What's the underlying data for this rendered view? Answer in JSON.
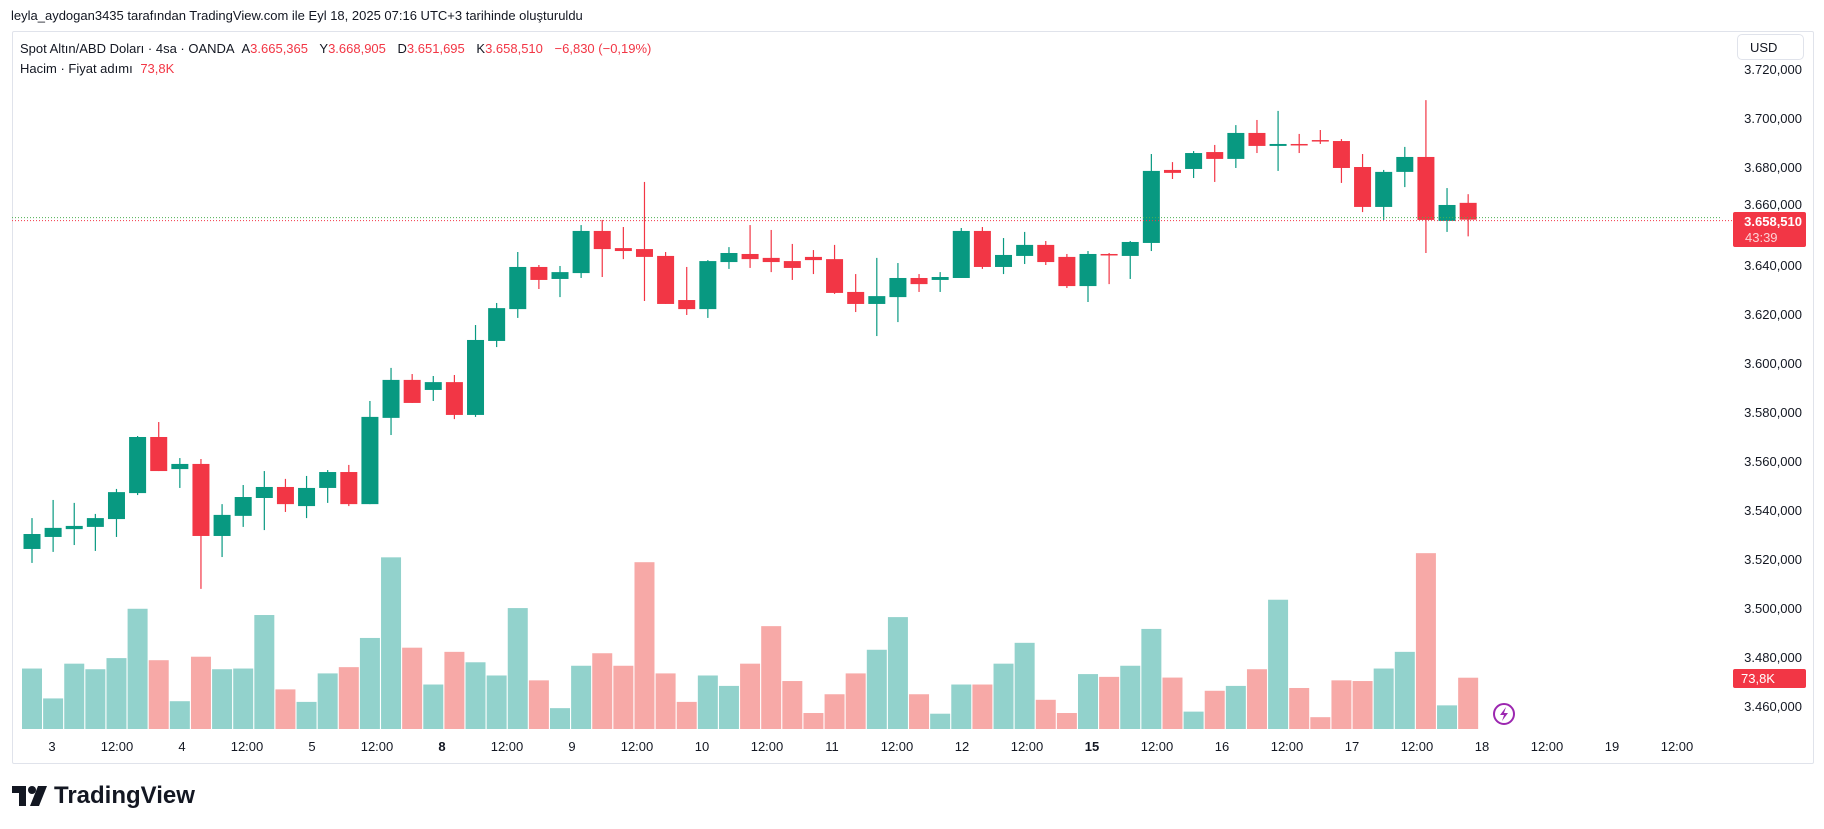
{
  "attribution": "leyla_aydogan3435 tarafından TradingView.com ile Eyl 18, 2025 07:16 UTC+3 tarihinde oluşturuldu",
  "legend": {
    "symbol": "Spot Altın/ABD Doları · 4sa · OANDA",
    "open_label": "A",
    "open": "3.665,365",
    "high_label": "Y",
    "high": "3.668,905",
    "low_label": "D",
    "low": "3.651,695",
    "close_label": "K",
    "close": "3.658,510",
    "change": "−6,830 (−0,19%)",
    "volume_title": "Hacim · Fiyat adımı",
    "volume_value": "73,8K"
  },
  "currency_button": "USD",
  "price_badge": {
    "price": "3.658,510",
    "countdown": "43:39"
  },
  "volume_badge": "73,8K",
  "logo_text": "TradingView",
  "icons": {
    "alert": "lightning-icon",
    "logo": "tradingview-logo-icon"
  },
  "colors": {
    "up": "#089981",
    "down": "#F23645",
    "vol_up": "#92D2CC",
    "vol_down": "#F7A9A7"
  },
  "chart_data": {
    "type": "candlestick",
    "price_axis_labels": [
      "3.720,000",
      "3.700,000",
      "3.680,000",
      "3.660,000",
      "3.640,000",
      "3.620,000",
      "3.600,000",
      "3.580,000",
      "3.560,000",
      "3.540,000",
      "3.520,000",
      "3.500,000",
      "3.480,000",
      "3.460,000"
    ],
    "price_axis_values": [
      3720,
      3700,
      3680,
      3660,
      3640,
      3620,
      3600,
      3580,
      3560,
      3540,
      3520,
      3500,
      3480,
      3460
    ],
    "time_labels": [
      {
        "t": "3",
        "bold": false
      },
      {
        "t": "12:00",
        "bold": false
      },
      {
        "t": "4",
        "bold": false
      },
      {
        "t": "12:00",
        "bold": false
      },
      {
        "t": "5",
        "bold": false
      },
      {
        "t": "12:00",
        "bold": false
      },
      {
        "t": "8",
        "bold": true
      },
      {
        "t": "12:00",
        "bold": false
      },
      {
        "t": "9",
        "bold": false
      },
      {
        "t": "12:00",
        "bold": false
      },
      {
        "t": "10",
        "bold": false
      },
      {
        "t": "12:00",
        "bold": false
      },
      {
        "t": "11",
        "bold": false
      },
      {
        "t": "12:00",
        "bold": false
      },
      {
        "t": "12",
        "bold": false
      },
      {
        "t": "12:00",
        "bold": false
      },
      {
        "t": "15",
        "bold": true
      },
      {
        "t": "12:00",
        "bold": false
      },
      {
        "t": "16",
        "bold": false
      },
      {
        "t": "12:00",
        "bold": false
      },
      {
        "t": "17",
        "bold": false
      },
      {
        "t": "12:00",
        "bold": false
      },
      {
        "t": "18",
        "bold": false
      },
      {
        "t": "12:00",
        "bold": false
      },
      {
        "t": "19",
        "bold": false
      },
      {
        "t": "12:00",
        "bold": false
      }
    ],
    "last_price": 3658.51,
    "ohlcv": [
      [
        3524.1,
        3536.7,
        3518.4,
        3530.2,
        87
      ],
      [
        3529.0,
        3544.1,
        3522.9,
        3532.7,
        44
      ],
      [
        3532.2,
        3542.9,
        3525.7,
        3533.5,
        94
      ],
      [
        3533.1,
        3538.4,
        3523.3,
        3536.7,
        86
      ],
      [
        3536.3,
        3548.6,
        3529.0,
        3547.3,
        102
      ],
      [
        3546.9,
        3570.2,
        3546.1,
        3569.8,
        173
      ],
      [
        3569.8,
        3575.9,
        3555.9,
        3555.9,
        99
      ],
      [
        3556.7,
        3561.2,
        3549.0,
        3558.8,
        40
      ],
      [
        3558.8,
        3560.8,
        3507.8,
        3529.4,
        104
      ],
      [
        3529.4,
        3542.4,
        3520.8,
        3538.0,
        86
      ],
      [
        3537.6,
        3550.2,
        3533.1,
        3545.3,
        87
      ],
      [
        3544.9,
        3555.9,
        3531.8,
        3549.4,
        164
      ],
      [
        3549.4,
        3552.7,
        3539.2,
        3542.4,
        57
      ],
      [
        3541.6,
        3553.9,
        3536.7,
        3549.0,
        39
      ],
      [
        3549.0,
        3556.3,
        3542.9,
        3555.5,
        80
      ],
      [
        3555.5,
        3558.4,
        3541.6,
        3542.4,
        89
      ],
      [
        3542.4,
        3584.5,
        3542.4,
        3578.0,
        131
      ],
      [
        3577.6,
        3598.0,
        3570.6,
        3593.1,
        247
      ],
      [
        3593.1,
        3595.5,
        3583.7,
        3583.7,
        117
      ],
      [
        3589.0,
        3594.7,
        3584.5,
        3592.2,
        64
      ],
      [
        3592.2,
        3595.1,
        3577.1,
        3578.8,
        111
      ],
      [
        3578.8,
        3615.5,
        3578.0,
        3609.4,
        96
      ],
      [
        3609.0,
        3624.5,
        3606.5,
        3622.4,
        77
      ],
      [
        3622.0,
        3645.3,
        3618.4,
        3639.2,
        174
      ],
      [
        3639.2,
        3640.0,
        3630.2,
        3633.9,
        70
      ],
      [
        3634.3,
        3639.6,
        3626.9,
        3637.1,
        30
      ],
      [
        3636.7,
        3656.3,
        3634.7,
        3653.9,
        91
      ],
      [
        3653.9,
        3658.4,
        3635.1,
        3646.5,
        109
      ],
      [
        3646.9,
        3655.5,
        3642.4,
        3645.7,
        91
      ],
      [
        3646.5,
        3673.9,
        3625.3,
        3643.3,
        240
      ],
      [
        3643.7,
        3645.3,
        3624.1,
        3624.1,
        80
      ],
      [
        3625.7,
        3639.2,
        3619.6,
        3622.0,
        39
      ],
      [
        3622.0,
        3642.0,
        3618.4,
        3641.6,
        77
      ],
      [
        3641.2,
        3647.3,
        3638.4,
        3644.9,
        62
      ],
      [
        3644.5,
        3656.3,
        3638.8,
        3642.4,
        94
      ],
      [
        3642.9,
        3654.3,
        3637.1,
        3641.2,
        148
      ],
      [
        3641.6,
        3648.6,
        3633.9,
        3638.8,
        69
      ],
      [
        3643.3,
        3646.1,
        3636.3,
        3642.0,
        23
      ],
      [
        3642.4,
        3648.2,
        3628.2,
        3628.6,
        50
      ],
      [
        3629.0,
        3636.3,
        3620.8,
        3624.1,
        80
      ],
      [
        3624.1,
        3642.9,
        3611.0,
        3627.3,
        114
      ],
      [
        3626.9,
        3640.8,
        3616.7,
        3634.7,
        161
      ],
      [
        3634.7,
        3636.3,
        3629.0,
        3632.2,
        50
      ],
      [
        3633.9,
        3637.1,
        3629.0,
        3635.1,
        22
      ],
      [
        3634.7,
        3655.1,
        3634.7,
        3653.9,
        64
      ],
      [
        3653.9,
        3655.5,
        3638.4,
        3639.2,
        64
      ],
      [
        3639.2,
        3651.0,
        3636.3,
        3644.1,
        94
      ],
      [
        3643.7,
        3653.5,
        3640.4,
        3648.2,
        124
      ],
      [
        3648.2,
        3649.8,
        3640.0,
        3641.2,
        42
      ],
      [
        3643.3,
        3644.5,
        3630.6,
        3631.4,
        23
      ],
      [
        3631.4,
        3645.7,
        3624.9,
        3644.5,
        79
      ],
      [
        3644.5,
        3644.9,
        3632.2,
        3644.1,
        75
      ],
      [
        3643.7,
        3649.8,
        3634.3,
        3649.4,
        91
      ],
      [
        3649.0,
        3685.3,
        3645.7,
        3678.4,
        144
      ],
      [
        3678.8,
        3682.0,
        3675.1,
        3677.6,
        74
      ],
      [
        3679.2,
        3686.5,
        3675.5,
        3685.7,
        25
      ],
      [
        3686.1,
        3689.0,
        3673.9,
        3683.3,
        55
      ],
      [
        3683.3,
        3697.1,
        3679.6,
        3693.9,
        62
      ],
      [
        3693.9,
        3699.2,
        3685.7,
        3688.6,
        86
      ],
      [
        3688.6,
        3702.9,
        3678.4,
        3689.4,
        186
      ],
      [
        3689.4,
        3693.5,
        3685.7,
        3689.0,
        59
      ],
      [
        3691.0,
        3695.1,
        3689.4,
        3690.6,
        17
      ],
      [
        3690.6,
        3691.4,
        3673.5,
        3679.6,
        70
      ],
      [
        3680.0,
        3685.3,
        3661.6,
        3663.7,
        69
      ],
      [
        3663.7,
        3678.8,
        3658.4,
        3678.0,
        87
      ],
      [
        3678.0,
        3688.2,
        3671.8,
        3684.1,
        111
      ],
      [
        3684.1,
        3707.3,
        3644.9,
        3658.4,
        253
      ],
      [
        3658.0,
        3671.4,
        3653.5,
        3664.5,
        34
      ],
      [
        3665.365,
        3668.905,
        3651.695,
        3658.51,
        73.8
      ]
    ]
  }
}
